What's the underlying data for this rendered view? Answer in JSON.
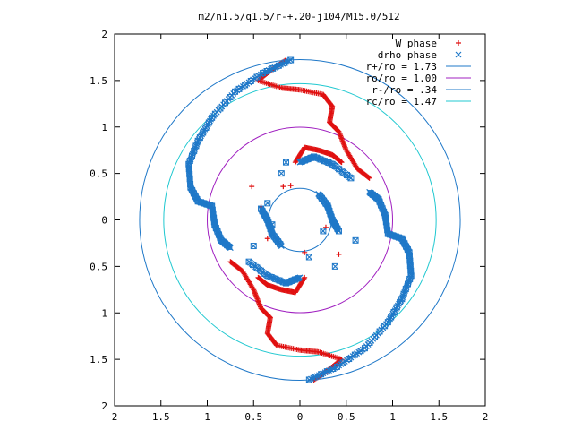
{
  "chart_data": {
    "type": "scatter",
    "title": "m2/n1.5/q1.5/r-+.20-j104/M15.0/512",
    "xlabel": "",
    "ylabel": "",
    "xlim": [
      -2,
      2
    ],
    "ylim": [
      -2,
      2
    ],
    "x_tick_labels": [
      "2",
      "1.5",
      "1",
      "0.5",
      "0",
      "0.5",
      "1",
      "1.5",
      "2"
    ],
    "y_tick_labels": [
      "2",
      "1.5",
      "1",
      "0.5",
      "0",
      "0.5",
      "1",
      "1.5",
      "2"
    ],
    "tick_values": [
      -2,
      -1.5,
      -1,
      -0.5,
      0,
      0.5,
      1,
      1.5,
      2
    ],
    "grid": false,
    "legend_position": "top-right",
    "circles": [
      {
        "label": "r+/ro = 1.73",
        "radius": 1.73,
        "color": "#1f78c8"
      },
      {
        "label": "ro/ro = 1.00",
        "radius": 1.0,
        "color": "#a020c0"
      },
      {
        "label": "r-/ro = .34",
        "radius": 0.34,
        "color": "#1f78c8"
      },
      {
        "label": "rc/ro = 1.47",
        "radius": 1.47,
        "color": "#20c8d0"
      }
    ],
    "series": [
      {
        "name": "W phase",
        "marker": "+",
        "color": "#e01010",
        "arms": [
          [
            [
              -0.15,
              1.72
            ],
            [
              -0.3,
              1.62
            ],
            [
              -0.45,
              1.5
            ],
            [
              -0.2,
              1.42
            ],
            [
              0.0,
              1.4
            ],
            [
              0.25,
              1.35
            ],
            [
              0.35,
              1.22
            ],
            [
              0.32,
              1.05
            ],
            [
              0.42,
              0.95
            ],
            [
              0.5,
              0.75
            ],
            [
              0.62,
              0.55
            ],
            [
              0.75,
              0.45
            ]
          ],
          [
            [
              0.15,
              -1.72
            ],
            [
              0.3,
              -1.62
            ],
            [
              0.45,
              -1.5
            ],
            [
              0.2,
              -1.42
            ],
            [
              0.0,
              -1.4
            ],
            [
              -0.25,
              -1.35
            ],
            [
              -0.35,
              -1.22
            ],
            [
              -0.32,
              -1.05
            ],
            [
              -0.42,
              -0.95
            ],
            [
              -0.5,
              -0.75
            ],
            [
              -0.62,
              -0.55
            ],
            [
              -0.75,
              -0.45
            ]
          ],
          [
            [
              -0.05,
              0.62
            ],
            [
              0.05,
              0.78
            ],
            [
              0.2,
              0.75
            ],
            [
              0.35,
              0.7
            ],
            [
              0.45,
              0.62
            ]
          ],
          [
            [
              0.05,
              -0.62
            ],
            [
              -0.05,
              -0.78
            ],
            [
              -0.2,
              -0.75
            ],
            [
              -0.35,
              -0.7
            ],
            [
              -0.45,
              -0.62
            ]
          ]
        ],
        "scatter": [
          [
            -0.52,
            0.36
          ],
          [
            -0.18,
            0.36
          ],
          [
            -0.42,
            0.14
          ],
          [
            -0.1,
            0.37
          ],
          [
            0.42,
            -0.37
          ],
          [
            0.28,
            -0.08
          ],
          [
            -0.35,
            -0.2
          ],
          [
            0.05,
            -0.35
          ]
        ]
      },
      {
        "name": "drho phase",
        "marker": "x",
        "color": "#1f78c8",
        "arms": [
          [
            [
              -0.1,
              1.72
            ],
            [
              -0.4,
              1.58
            ],
            [
              -0.7,
              1.38
            ],
            [
              -0.95,
              1.1
            ],
            [
              -1.1,
              0.85
            ],
            [
              -1.2,
              0.6
            ],
            [
              -1.18,
              0.35
            ],
            [
              -1.1,
              0.2
            ],
            [
              -0.95,
              0.15
            ],
            [
              -0.92,
              -0.05
            ],
            [
              -0.85,
              -0.22
            ],
            [
              -0.75,
              -0.3
            ]
          ],
          [
            [
              0.1,
              -1.72
            ],
            [
              0.4,
              -1.58
            ],
            [
              0.7,
              -1.38
            ],
            [
              0.95,
              -1.1
            ],
            [
              1.1,
              -0.85
            ],
            [
              1.2,
              -0.6
            ],
            [
              1.18,
              -0.35
            ],
            [
              1.1,
              -0.2
            ],
            [
              0.95,
              -0.15
            ],
            [
              0.92,
              0.05
            ],
            [
              0.85,
              0.22
            ],
            [
              0.75,
              0.3
            ]
          ],
          [
            [
              -0.55,
              -0.45
            ],
            [
              -0.35,
              -0.6
            ],
            [
              -0.15,
              -0.68
            ],
            [
              0.0,
              -0.62
            ]
          ],
          [
            [
              0.55,
              0.45
            ],
            [
              0.35,
              0.6
            ],
            [
              0.15,
              0.68
            ],
            [
              0.0,
              0.62
            ]
          ],
          [
            [
              -0.42,
              0.12
            ],
            [
              -0.35,
              0.0
            ],
            [
              -0.3,
              -0.15
            ],
            [
              -0.2,
              -0.28
            ]
          ],
          [
            [
              0.42,
              -0.12
            ],
            [
              0.35,
              0.0
            ],
            [
              0.3,
              0.15
            ],
            [
              0.2,
              0.28
            ]
          ]
        ],
        "scatter": [
          [
            -0.2,
            0.5
          ],
          [
            -0.35,
            0.18
          ],
          [
            -0.5,
            -0.28
          ],
          [
            0.25,
            -0.12
          ],
          [
            0.6,
            -0.22
          ],
          [
            0.38,
            -0.5
          ],
          [
            -0.15,
            0.62
          ],
          [
            0.1,
            -0.4
          ],
          [
            -0.3,
            -0.05
          ]
        ]
      }
    ]
  }
}
